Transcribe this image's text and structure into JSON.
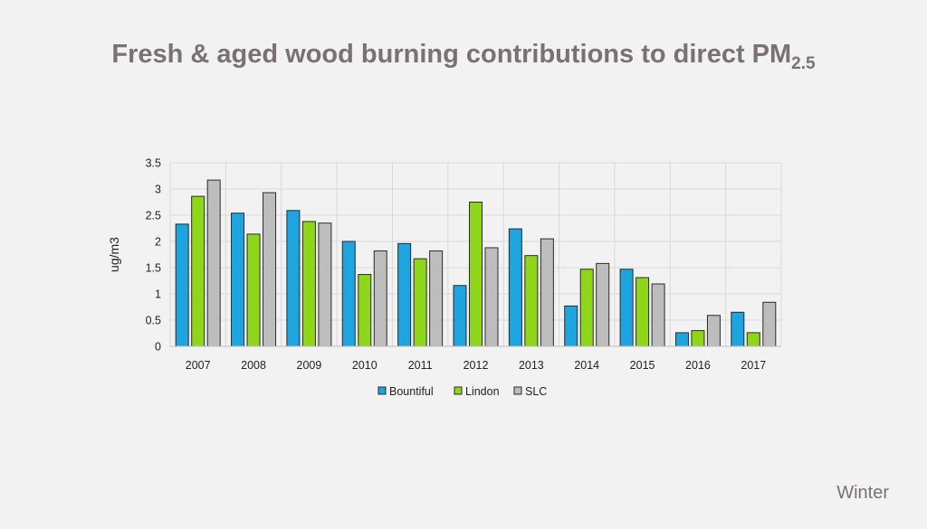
{
  "slide": {
    "title_main": "Fresh & aged wood burning contributions to direct PM",
    "title_sub": "2.5",
    "season_label": "Winter"
  },
  "colors": {
    "background": "#f2f2f2",
    "title": "#7a7272",
    "Bountiful": "#1ea5e0",
    "Lindon": "#8fd61a",
    "SLC": "#bdbdbd",
    "grid": "#d9d9d9"
  },
  "chart_data": {
    "type": "bar",
    "title": "Fresh & aged wood burning contributions to direct PM2.5",
    "xlabel": "",
    "ylabel": "ug/m3",
    "ylim": [
      0,
      3.5
    ],
    "yticks": [
      0,
      0.5,
      1,
      1.5,
      2,
      2.5,
      3,
      3.5
    ],
    "ytick_labels": [
      "0",
      "0.5",
      "1",
      "1.5",
      "2",
      "2.5",
      "3",
      "3.5"
    ],
    "grid": true,
    "legend_position": "bottom",
    "categories": [
      "2007",
      "2008",
      "2009",
      "2010",
      "2011",
      "2012",
      "2013",
      "2014",
      "2015",
      "2016",
      "2017"
    ],
    "series": [
      {
        "name": "Bountiful",
        "color": "#1ea5e0",
        "values": [
          2.33,
          2.54,
          2.59,
          2.0,
          1.96,
          1.16,
          2.24,
          0.77,
          1.47,
          0.26,
          0.65
        ]
      },
      {
        "name": "Lindon",
        "color": "#8fd61a",
        "values": [
          2.86,
          2.14,
          2.38,
          1.37,
          1.67,
          2.75,
          1.73,
          1.47,
          1.31,
          0.3,
          0.26
        ]
      },
      {
        "name": "SLC",
        "color": "#bdbdbd",
        "values": [
          3.17,
          2.93,
          2.35,
          1.82,
          1.82,
          1.88,
          2.05,
          1.58,
          1.19,
          0.59,
          0.84
        ]
      }
    ]
  }
}
